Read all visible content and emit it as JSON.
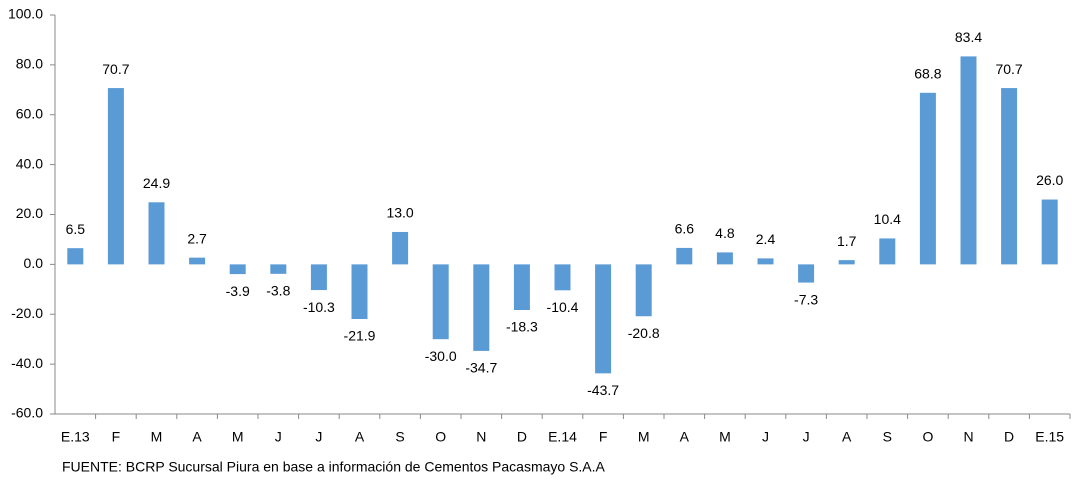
{
  "chart_data": {
    "type": "bar",
    "categories": [
      "E.13",
      "F",
      "M",
      "A",
      "M",
      "J",
      "J",
      "A",
      "S",
      "O",
      "N",
      "D",
      "E.14",
      "F",
      "M",
      "A",
      "M",
      "J",
      "J",
      "A",
      "S",
      "O",
      "N",
      "D",
      "E.15"
    ],
    "values": [
      6.5,
      70.7,
      24.9,
      2.7,
      -3.9,
      -3.8,
      -10.3,
      -21.9,
      13.0,
      -30.0,
      -34.7,
      -18.3,
      -10.4,
      -43.7,
      -20.8,
      6.6,
      4.8,
      2.4,
      -7.3,
      1.7,
      10.4,
      68.8,
      83.4,
      70.7,
      26.0
    ],
    "value_labels": [
      "6.5",
      "70.7",
      "24.9",
      "2.7",
      "-3.9",
      "-3.8",
      "-10.3",
      "-21.9",
      "13.0",
      "-30.0",
      "-34.7",
      "-18.3",
      "-10.4",
      "-43.7",
      "-20.8",
      "6.6",
      "4.8",
      "2.4",
      "-7.3",
      "1.7",
      "10.4",
      "68.8",
      "83.4",
      "70.7",
      "26.0"
    ],
    "color": "#5b9bd5",
    "ylim": [
      -60,
      100
    ],
    "yticks": [
      {
        "value": -60,
        "label": "-60.0"
      },
      {
        "value": -40,
        "label": "-40.0"
      },
      {
        "value": -20,
        "label": "-20.0"
      },
      {
        "value": 0,
        "label": "0.0"
      },
      {
        "value": 20,
        "label": "20.0"
      },
      {
        "value": 40,
        "label": "40.0"
      },
      {
        "value": 60,
        "label": "60.0"
      },
      {
        "value": 80,
        "label": "80.0"
      },
      {
        "value": 100,
        "label": "100.0"
      }
    ],
    "grid": false,
    "source": "FUENTE: BCRP Sucursal Piura en base a información de Cementos Pacasmayo S.A.A"
  }
}
